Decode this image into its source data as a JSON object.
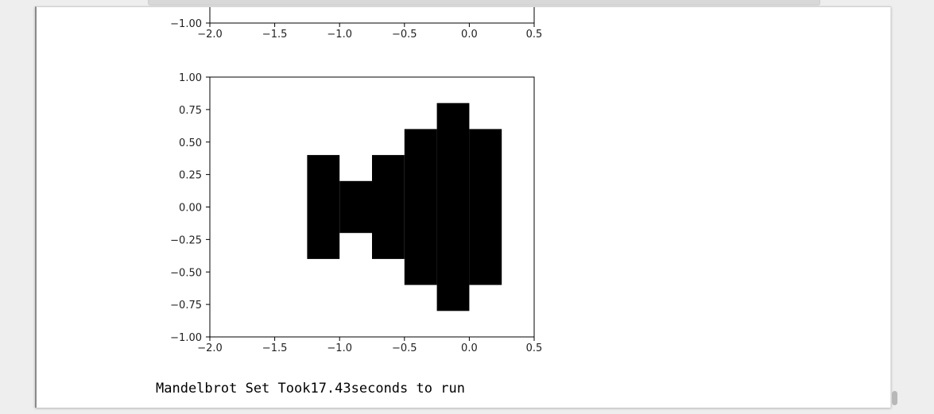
{
  "output": {
    "footer_text": "Mandelbrot Set Took17.43seconds to run"
  },
  "chart_data": [
    {
      "type": "heatmap",
      "title": "",
      "xlabel": "",
      "ylabel": "",
      "xlim": [
        -2.0,
        0.5
      ],
      "ylim": [
        -1.0,
        1.0
      ],
      "x_tick_labels": [
        "−2.0",
        "−1.5",
        "−1.0",
        "−0.5",
        "0.0",
        "0.5"
      ],
      "y_tick_labels_visible": [
        "−1.00"
      ],
      "note": "partially visible plot, top cut off"
    },
    {
      "type": "heatmap",
      "title": "",
      "xlabel": "",
      "ylabel": "",
      "xlim": [
        -2.0,
        0.5
      ],
      "ylim": [
        -1.0,
        1.0
      ],
      "x_ticks": [
        -2.0,
        -1.5,
        -1.0,
        -0.5,
        0.0,
        0.5
      ],
      "x_tick_labels": [
        "−2.0",
        "−1.5",
        "−1.0",
        "−0.5",
        "0.0",
        "0.5"
      ],
      "y_ticks": [
        1.0,
        0.75,
        0.5,
        0.25,
        0.0,
        -0.25,
        -0.5,
        -0.75,
        -1.0
      ],
      "y_tick_labels": [
        "1.00",
        "0.75",
        "0.50",
        "0.25",
        "0.00",
        "−0.25",
        "−0.50",
        "−0.75",
        "−1.00"
      ],
      "grid": false,
      "cell_color": "#000000",
      "filled_cells": [
        {
          "x0": -1.25,
          "x1": -1.0,
          "y0": -0.4,
          "y1": 0.4
        },
        {
          "x0": -1.0,
          "x1": -0.75,
          "y0": -0.2,
          "y1": 0.2
        },
        {
          "x0": -0.75,
          "x1": -0.5,
          "y0": -0.4,
          "y1": 0.4
        },
        {
          "x0": -0.5,
          "x1": -0.25,
          "y0": -0.6,
          "y1": 0.6
        },
        {
          "x0": -0.25,
          "x1": 0.0,
          "y0": -0.8,
          "y1": 0.8
        },
        {
          "x0": 0.0,
          "x1": 0.25,
          "y0": -0.6,
          "y1": 0.6
        }
      ]
    }
  ]
}
